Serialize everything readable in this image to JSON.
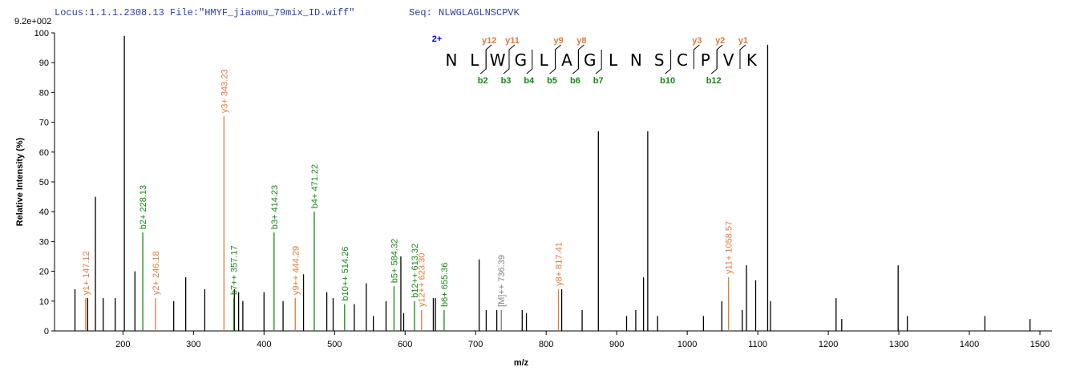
{
  "header": {
    "locus": "Locus:1.1.1.2308.13 File:\"HMYF_jiaomu_79mix_ID.wiff\"",
    "seq_label": "Seq:",
    "seq": "NLWGLAGLNSCPVK"
  },
  "sequence": {
    "charge": "2+",
    "residues": [
      "N",
      "L",
      "W",
      "G",
      "L",
      "A",
      "G",
      "L",
      "N",
      "S",
      "C",
      "P",
      "V",
      "K"
    ],
    "y_ions": [
      "y12",
      "y11",
      "y9",
      "y8",
      "y3",
      "y2",
      "y1"
    ],
    "b_ions": [
      "b2",
      "b3",
      "b4",
      "b5",
      "b6",
      "b7",
      "b10",
      "b12"
    ]
  },
  "chart_data": {
    "type": "stick",
    "scale_label": "9.2e+002",
    "xlabel": "m/z",
    "ylabel": "Relative  Intensity (%)",
    "xlim": [
      103,
      1517
    ],
    "xticks": [
      200,
      300,
      400,
      500,
      600,
      700,
      800,
      900,
      1000,
      1100,
      1200,
      1300,
      1400,
      1500
    ],
    "ylim": [
      0,
      100
    ],
    "yticks": [
      0,
      10,
      20,
      30,
      40,
      50,
      60,
      70,
      80,
      90,
      100
    ],
    "series": [
      {
        "color": "#000000",
        "x": [
          132,
          150,
          161,
          172,
          189,
          202,
          217,
          272,
          289,
          316,
          358,
          364,
          370,
          400,
          427,
          456,
          489,
          498,
          528,
          545,
          555,
          573,
          594,
          598,
          640,
          643,
          705,
          715,
          730,
          766,
          772,
          822,
          851,
          874,
          914,
          927,
          938,
          944,
          958,
          1023,
          1049,
          1078,
          1084,
          1097,
          1114,
          1118,
          1211,
          1219,
          1299,
          1312,
          1422,
          1486
        ],
        "values": [
          14,
          11,
          45,
          11,
          11,
          99,
          20,
          10,
          18,
          14,
          14,
          13,
          10,
          13,
          10,
          19,
          13,
          11,
          9,
          16,
          5,
          10,
          25,
          6,
          11,
          11,
          24,
          7,
          7,
          7,
          6,
          14,
          7,
          67,
          5,
          7,
          18,
          67,
          5,
          5,
          10,
          7,
          22,
          17,
          96,
          10,
          11,
          4,
          22,
          5,
          5,
          4
        ]
      },
      {
        "color": "#e07b39",
        "x": [
          147.12,
          246.18,
          343.23,
          444.29,
          623.3,
          817.41,
          1058.57
        ],
        "values": [
          11,
          11,
          72,
          11,
          7,
          14,
          18
        ],
        "labels": [
          "y1+ 147.12",
          "y2+ 246.18",
          "y3+ 343.23",
          "y9++ 444.29",
          "y12++ 623.30",
          "y8+ 817.41",
          "y11+ 1058.57"
        ]
      },
      {
        "color": "#138a13",
        "x": [
          228.13,
          357.17,
          414.23,
          471.22,
          514.26,
          584.32,
          613.32,
          655.36
        ],
        "values": [
          33,
          11,
          33,
          40,
          9,
          15,
          10,
          7
        ],
        "labels": [
          "b2+ 228.13",
          "b7++ 357.17",
          "b3+ 414.23",
          "b4+ 471.22",
          "b10++ 514.26",
          "b5+ 584.32",
          "b12++ 613.32",
          "b6+ 655.36"
        ]
      },
      {
        "color": "#808080",
        "x": [
          736.39
        ],
        "values": [
          7
        ],
        "labels": [
          "[M]++ 736.39"
        ]
      }
    ]
  }
}
